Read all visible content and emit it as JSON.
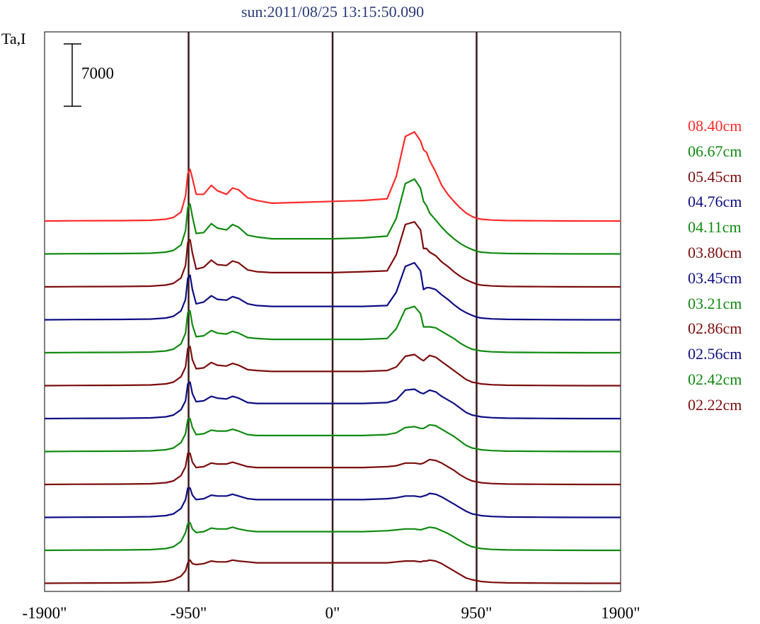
{
  "title": "sun:2011/08/25 13:15:50.090",
  "ylabel": "Ta,I",
  "scale_bar_label": "7000",
  "colors": {
    "red": "#ff2a2a",
    "green": "#108a10",
    "maroon": "#7c0d0d",
    "blue": "#0d0d84"
  },
  "chart_data": {
    "type": "line",
    "title": "sun:2011/08/25 13:15:50.090",
    "ylabel": "Ta,I",
    "xlabel": "",
    "x_ticks": [
      "-1900\"",
      "-950\"",
      "0\"",
      "950\"",
      "1900\""
    ],
    "x_tick_values": [
      -1900,
      -950,
      0,
      950,
      1900
    ],
    "xlim": [
      -1900,
      1900
    ],
    "vertical_lines": [
      -950,
      0,
      950
    ],
    "scale_bar": 7000,
    "legend_position": "right",
    "grid": false,
    "x": [
      -1900,
      -1700,
      -1400,
      -1200,
      -1100,
      -1050,
      -1000,
      -970,
      -955,
      -940,
      -925,
      -900,
      -850,
      -800,
      -760,
      -700,
      -660,
      -620,
      -560,
      -500,
      -400,
      -200,
      0,
      200,
      360,
      420,
      480,
      540,
      580,
      600,
      620,
      640,
      680,
      720,
      760,
      800,
      840,
      880,
      920,
      950,
      980,
      1050,
      1150,
      1300,
      1500,
      1700,
      1900
    ],
    "series": [
      {
        "name": "08.40cm",
        "color": "#ff2a2a",
        "values": [
          0,
          20,
          40,
          80,
          200,
          400,
          1000,
          2800,
          5300,
          5800,
          4800,
          3000,
          3000,
          4000,
          3400,
          3000,
          3700,
          3500,
          2600,
          2300,
          2000,
          2100,
          2200,
          2300,
          2500,
          5000,
          9500,
          10000,
          9000,
          8000,
          7700,
          6800,
          5500,
          4000,
          3000,
          2200,
          1500,
          900,
          500,
          300,
          200,
          100,
          50,
          30,
          10,
          0,
          0
        ]
      },
      {
        "name": "06.67cm",
        "color": "#108a10",
        "values": [
          0,
          20,
          40,
          80,
          200,
          400,
          1000,
          2600,
          5200,
          5600,
          4200,
          2300,
          2400,
          3400,
          2900,
          2700,
          3300,
          3000,
          2100,
          1900,
          1700,
          1700,
          1700,
          1800,
          2000,
          4000,
          7900,
          8400,
          7400,
          5900,
          5400,
          4600,
          3800,
          3000,
          2300,
          1700,
          1200,
          800,
          500,
          300,
          200,
          100,
          50,
          30,
          10,
          0,
          0
        ]
      },
      {
        "name": "05.45cm",
        "color": "#7c0d0d",
        "values": [
          0,
          20,
          40,
          80,
          200,
          400,
          1000,
          2400,
          5000,
          5300,
          3800,
          2000,
          2200,
          3000,
          2500,
          2400,
          2900,
          2700,
          1900,
          1700,
          1600,
          1600,
          1600,
          1700,
          1800,
          3600,
          7000,
          7300,
          6400,
          4300,
          4300,
          3900,
          3500,
          2800,
          2300,
          1700,
          1200,
          800,
          500,
          300,
          200,
          100,
          50,
          30,
          10,
          0,
          0
        ]
      },
      {
        "name": "04.76cm",
        "color": "#0d0d84",
        "values": [
          0,
          20,
          40,
          80,
          200,
          400,
          1000,
          2300,
          4700,
          5000,
          3400,
          1800,
          2000,
          2700,
          2300,
          2200,
          2600,
          2400,
          1800,
          1600,
          1500,
          1500,
          1500,
          1500,
          1600,
          3100,
          6000,
          6400,
          5500,
          3400,
          3600,
          3600,
          3400,
          2800,
          2300,
          1700,
          1200,
          800,
          500,
          300,
          200,
          100,
          50,
          30,
          10,
          0,
          0
        ]
      },
      {
        "name": "04.11cm",
        "color": "#108a10",
        "values": [
          0,
          20,
          40,
          80,
          200,
          400,
          1000,
          2200,
          4500,
          4700,
          3100,
          1800,
          1900,
          2500,
          2200,
          2100,
          2400,
          2200,
          1700,
          1600,
          1500,
          1500,
          1500,
          1500,
          1600,
          2700,
          4900,
          5200,
          4400,
          2900,
          2900,
          2900,
          2800,
          2400,
          2000,
          1600,
          1100,
          700,
          400,
          300,
          200,
          100,
          50,
          30,
          10,
          0,
          0
        ]
      },
      {
        "name": "03.80cm",
        "color": "#7c0d0d",
        "values": [
          0,
          20,
          40,
          80,
          200,
          400,
          1000,
          2100,
          4200,
          4400,
          2900,
          1900,
          2000,
          2600,
          2300,
          2200,
          2500,
          2300,
          1800,
          1700,
          1600,
          1600,
          1600,
          1600,
          1700,
          2100,
          3300,
          3500,
          3000,
          2800,
          3100,
          3400,
          3200,
          2700,
          2200,
          1700,
          1200,
          700,
          400,
          300,
          200,
          100,
          50,
          30,
          10,
          0,
          0
        ]
      },
      {
        "name": "03.45cm",
        "color": "#0d0d84",
        "values": [
          0,
          20,
          40,
          80,
          200,
          400,
          1000,
          2000,
          3900,
          4100,
          2800,
          1900,
          2000,
          2500,
          2300,
          2200,
          2500,
          2300,
          1800,
          1700,
          1700,
          1700,
          1700,
          1700,
          1800,
          2100,
          3200,
          3300,
          2900,
          2800,
          3000,
          3200,
          3000,
          2500,
          2100,
          1700,
          1200,
          700,
          400,
          300,
          200,
          100,
          50,
          30,
          10,
          0,
          0
        ]
      },
      {
        "name": "03.21cm",
        "color": "#108a10",
        "values": [
          0,
          20,
          40,
          80,
          200,
          400,
          1000,
          2000,
          3600,
          3700,
          2700,
          1900,
          2000,
          2400,
          2300,
          2300,
          2500,
          2300,
          1900,
          1800,
          1800,
          1800,
          1800,
          1800,
          1900,
          2100,
          2700,
          2800,
          2600,
          2600,
          2800,
          3000,
          2900,
          2500,
          2100,
          1700,
          1200,
          700,
          400,
          300,
          200,
          100,
          50,
          30,
          10,
          0,
          0
        ]
      },
      {
        "name": "02.86cm",
        "color": "#7c0d0d",
        "values": [
          0,
          20,
          40,
          80,
          200,
          400,
          1000,
          2000,
          3500,
          3500,
          2500,
          1900,
          2000,
          2400,
          2300,
          2300,
          2500,
          2300,
          2000,
          1900,
          1900,
          1900,
          1900,
          1900,
          2000,
          2100,
          2400,
          2400,
          2300,
          2400,
          2600,
          2800,
          2700,
          2400,
          2000,
          1600,
          1100,
          700,
          400,
          300,
          200,
          100,
          50,
          30,
          10,
          0,
          0
        ]
      },
      {
        "name": "02.56cm",
        "color": "#0d0d84",
        "values": [
          0,
          20,
          40,
          80,
          200,
          400,
          1000,
          2000,
          3300,
          3300,
          2500,
          2000,
          2100,
          2500,
          2400,
          2400,
          2600,
          2400,
          2100,
          2000,
          2000,
          2000,
          2000,
          2000,
          2100,
          2200,
          2400,
          2400,
          2300,
          2400,
          2500,
          2700,
          2600,
          2300,
          1900,
          1500,
          1100,
          700,
          400,
          300,
          200,
          100,
          50,
          30,
          10,
          0,
          0
        ]
      },
      {
        "name": "02.42cm",
        "color": "#108a10",
        "values": [
          0,
          20,
          40,
          80,
          200,
          400,
          1000,
          2000,
          3000,
          3100,
          2400,
          2000,
          2100,
          2500,
          2400,
          2400,
          2600,
          2400,
          2200,
          2100,
          2100,
          2100,
          2100,
          2100,
          2200,
          2300,
          2400,
          2400,
          2300,
          2400,
          2500,
          2600,
          2500,
          2200,
          1900,
          1500,
          1100,
          700,
          400,
          300,
          200,
          100,
          50,
          30,
          10,
          0,
          0
        ]
      },
      {
        "name": "02.22cm",
        "color": "#7c0d0d",
        "values": [
          0,
          20,
          40,
          80,
          200,
          400,
          800,
          1400,
          2300,
          2600,
          2200,
          2100,
          2200,
          2500,
          2400,
          2400,
          2600,
          2500,
          2400,
          2300,
          2300,
          2300,
          2300,
          2300,
          2300,
          2400,
          2500,
          2500,
          2400,
          2500,
          2500,
          2600,
          2500,
          2200,
          1800,
          1400,
          1000,
          600,
          400,
          300,
          200,
          100,
          50,
          30,
          10,
          0,
          0
        ]
      }
    ]
  }
}
